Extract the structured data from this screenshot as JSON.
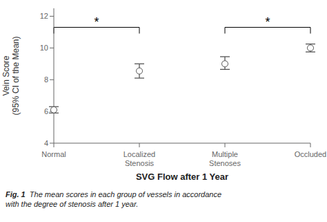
{
  "chart_data": {
    "type": "scatter",
    "categories": [
      "Normal",
      "Localized\nStenosis",
      "Multiple\nStenoses",
      "Occluded"
    ],
    "values": [
      6.1,
      8.55,
      9.0,
      10.0
    ],
    "ci_lower": [
      5.9,
      8.1,
      8.65,
      9.75
    ],
    "ci_upper": [
      6.3,
      9.0,
      9.45,
      10.25
    ],
    "ylim": [
      4,
      12.5
    ],
    "yticks": [
      4,
      6,
      8,
      10,
      12
    ],
    "ylabel": "Vein Score\n(95% CI of the Mean)",
    "xlabel": "SVG Flow after 1 Year",
    "color": "#555555",
    "marker": "circle",
    "grid": false,
    "annotations": [
      {
        "text": "*",
        "x1": "Normal",
        "x2": "Localized\nStenosis",
        "y": 11.3
      },
      {
        "text": "*",
        "x1": "Multiple\nStenoses",
        "x2": "Occluded",
        "y": 11.3
      }
    ],
    "caption": [
      {
        "text": "Fig. 1",
        "bold": true
      },
      {
        "text": "  The mean scores in each group of vessels in accordance\nwith the degree of stenosis after 1 year.",
        "bold": false
      }
    ]
  }
}
